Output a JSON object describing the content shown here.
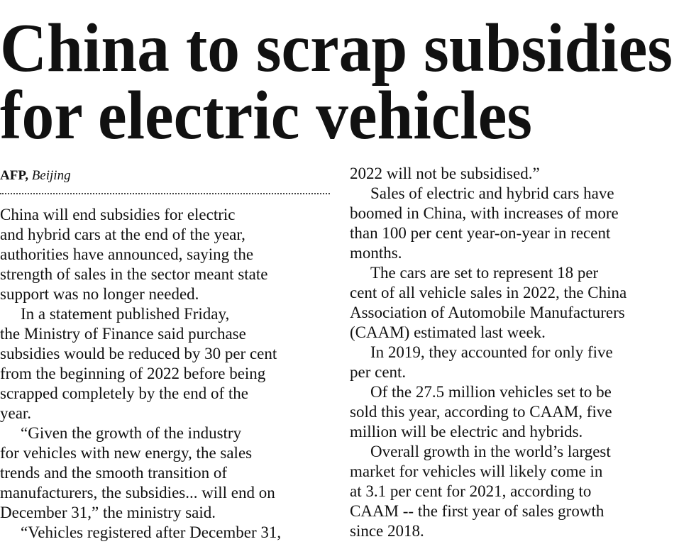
{
  "headline": [
    "China to scrap subsidies",
    "for electric vehicles"
  ],
  "byline": {
    "agency": "AFP,",
    "place": "Beijing"
  },
  "columns": [
    [
      [
        "China will end subsidies for electric",
        "and hybrid cars at the end of the year,",
        "authorities have announced, saying the",
        "strength of sales in the sector meant state",
        "support was no longer needed."
      ],
      [
        "In a statement published Friday,",
        "the Ministry of Finance said purchase",
        "subsidies would be reduced by 30 per cent",
        "from the beginning of 2022 before being",
        "scrapped completely by the end of the",
        "year."
      ],
      [
        "“Given the growth of the industry",
        "for vehicles with new energy, the sales",
        "trends and the smooth transition of",
        "manufacturers, the subsidies... will end on",
        "December 31,” the ministry said."
      ],
      [
        "“Vehicles registered after December 31,"
      ]
    ],
    [
      [
        "2022 will not be subsidised.”"
      ],
      [
        "Sales of electric and hybrid cars have",
        "boomed in China, with increases of more",
        "than 100 per cent year-on-year in recent",
        "months."
      ],
      [
        "The cars are set to represent 18 per",
        "cent of all vehicle sales in 2022, the China",
        "Association of Automobile Manufacturers",
        "(CAAM) estimated last week."
      ],
      [
        "In 2019, they accounted for only five",
        "per cent."
      ],
      [
        "Of the 27.5 million vehicles set to be",
        "sold this year, according to CAAM, five",
        "million will be electric and hybrids."
      ],
      [
        "Overall growth in the world’s largest",
        "market for vehicles will likely come in",
        "at 3.1 per cent for 2021, according to",
        "CAAM -- the first year of sales growth",
        "since 2018."
      ]
    ]
  ]
}
